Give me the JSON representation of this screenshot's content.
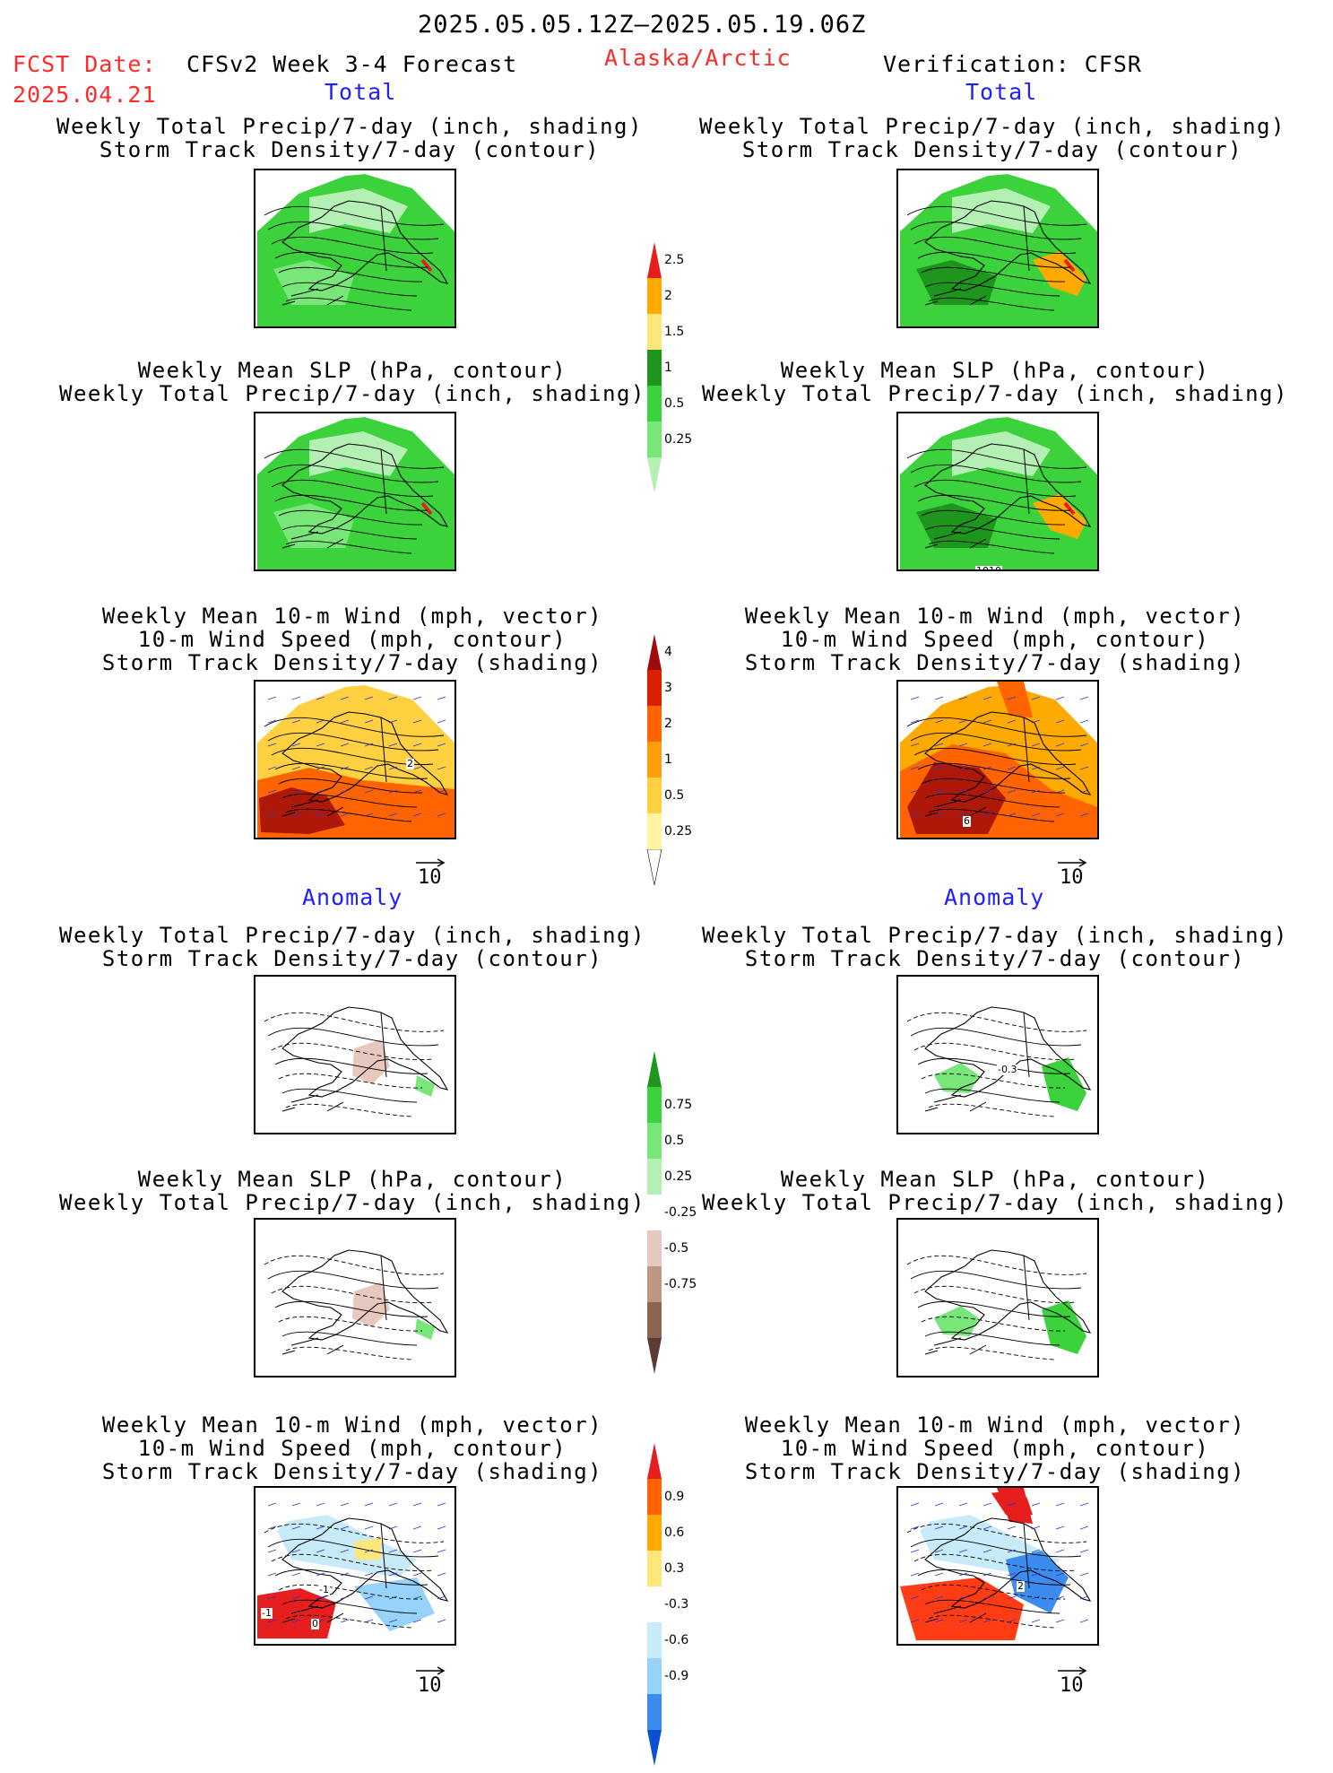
{
  "header": {
    "period": "2025.05.05.12Z–2025.05.19.06Z",
    "fcst_label": "FCST Date:",
    "fcst_date": "2025.04.21",
    "model": "CFSv2 Week 3-4 Forecast",
    "region": "Alaska/Arctic",
    "verification": "Verification: CFSR"
  },
  "sections": {
    "total": "Total",
    "anomaly": "Anomaly"
  },
  "panel_titles": {
    "precip_storm": [
      "Weekly Total Precip/7-day (inch, shading)",
      "Storm Track Density/7-day (contour)"
    ],
    "slp_precip": [
      "Weekly Mean SLP (hPa, contour)",
      "Weekly Total Precip/7-day (inch, shading)"
    ],
    "wind_storm": [
      "Weekly Mean 10-m Wind (mph, vector)",
      "10-m Wind Speed (mph, contour)",
      "Storm Track Density/7-day (shading)"
    ]
  },
  "vector_key": "10",
  "panel_labels": {
    "slp_contour": "1010",
    "storm_total_fcst": "2",
    "storm_total_obs": "6",
    "wind_anom_fcst_a": "-1",
    "wind_anom_fcst_b": "-1",
    "wind_anom_fcst_c": "0",
    "wind_anom_obs": "2",
    "precip_anom_obs": "-0.3"
  },
  "chart_data": [
    {
      "type": "heatmap",
      "name": "precip_total_colorbar",
      "levels": [
        "0.25",
        "0.5",
        "1",
        "1.5",
        "2",
        "2.5"
      ],
      "colors": [
        "#b4f0b4",
        "#78e678",
        "#3cd23c",
        "#1e961e",
        "#ffe678",
        "#ffaa00",
        "#e61e1e"
      ]
    },
    {
      "type": "heatmap",
      "name": "storm_density_total_colorbar",
      "levels": [
        "0.25",
        "0.5",
        "1",
        "2",
        "3",
        "4"
      ],
      "colors": [
        "#ffffff",
        "#fff5a0",
        "#ffd040",
        "#ff9e0a",
        "#ff6400",
        "#dc1e00",
        "#a00a0a"
      ]
    },
    {
      "type": "heatmap",
      "name": "precip_anomaly_colorbar",
      "levels": [
        "-0.75",
        "-0.5",
        "-0.25",
        "0.25",
        "0.5",
        "0.75"
      ],
      "colors": [
        "#5a3c32",
        "#8c6450",
        "#be9682",
        "#e6c8be",
        "#ffffff",
        "#b4f0b4",
        "#78e678",
        "#3cd23c",
        "#1e961e"
      ]
    },
    {
      "type": "heatmap",
      "name": "storm_density_anomaly_colorbar",
      "levels": [
        "-0.9",
        "-0.6",
        "-0.3",
        "0.3",
        "0.6",
        "0.9"
      ],
      "colors": [
        "#0a50d2",
        "#3c8cf0",
        "#96d2fa",
        "#c8ebfa",
        "#ffffff",
        "#ffe678",
        "#ffaa00",
        "#ff6400",
        "#e61e1e"
      ]
    }
  ]
}
